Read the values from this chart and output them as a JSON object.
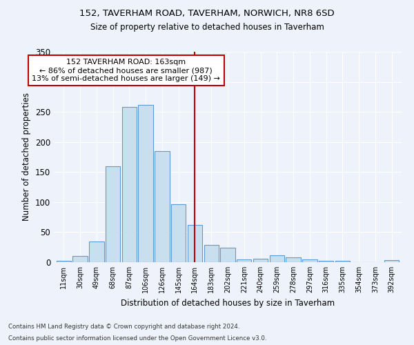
{
  "title1": "152, TAVERHAM ROAD, TAVERHAM, NORWICH, NR8 6SD",
  "title2": "Size of property relative to detached houses in Taverham",
  "xlabel": "Distribution of detached houses by size in Taverham",
  "ylabel": "Number of detached properties",
  "categories": [
    "11sqm",
    "30sqm",
    "49sqm",
    "68sqm",
    "87sqm",
    "106sqm",
    "126sqm",
    "145sqm",
    "164sqm",
    "183sqm",
    "202sqm",
    "221sqm",
    "240sqm",
    "259sqm",
    "278sqm",
    "297sqm",
    "316sqm",
    "335sqm",
    "354sqm",
    "373sqm",
    "392sqm"
  ],
  "values": [
    2,
    10,
    35,
    160,
    258,
    262,
    185,
    96,
    62,
    29,
    24,
    5,
    6,
    11,
    8,
    5,
    2,
    2,
    0,
    0,
    3
  ],
  "bar_color": "#c8dff0",
  "bar_edge_color": "#5b9bd5",
  "vline_x": 8,
  "vline_color": "#c00000",
  "annotation_title": "152 TAVERHAM ROAD: 163sqm",
  "annotation_line1": "← 86% of detached houses are smaller (987)",
  "annotation_line2": "13% of semi-detached houses are larger (149) →",
  "annotation_box_color": "#c00000",
  "background_color": "#eef2fb",
  "footer1": "Contains HM Land Registry data © Crown copyright and database right 2024.",
  "footer2": "Contains public sector information licensed under the Open Government Licence v3.0.",
  "ylim": [
    0,
    350
  ]
}
